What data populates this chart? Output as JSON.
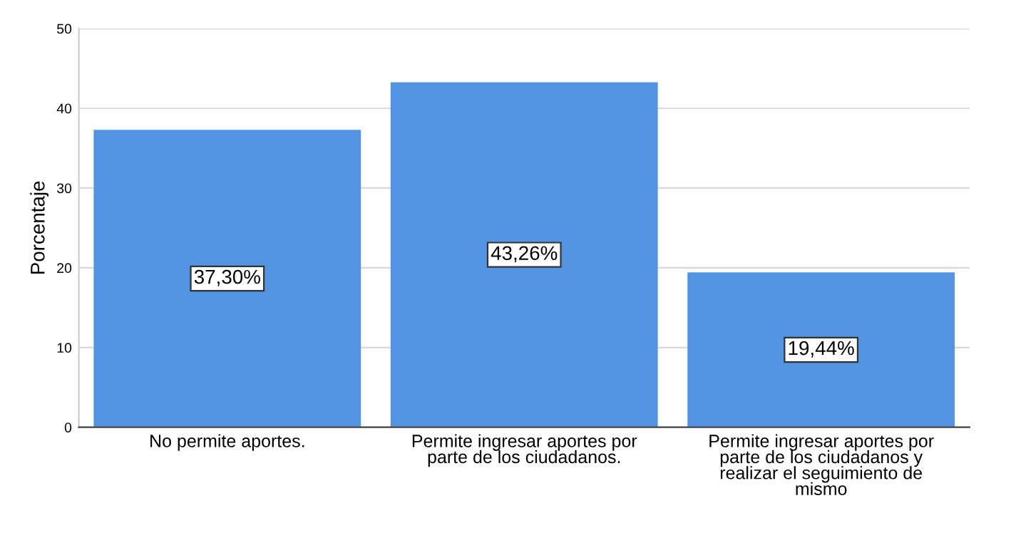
{
  "chart_data": {
    "type": "bar",
    "ylabel": "Porcentaje",
    "categories": [
      "No permite aportes.",
      "Permite ingresar aportes por\nparte de los ciudadanos.",
      "Permite ingresar aportes por\nparte de los ciudadanos y\nrealizar el seguimiento de\nmismo"
    ],
    "values": [
      37.3,
      43.26,
      19.44
    ],
    "value_labels": [
      "37,30%",
      "43,26%",
      "19,44%"
    ],
    "color": "#5294e2",
    "ylim": [
      0,
      50
    ],
    "yticks": [
      0,
      10,
      20,
      30,
      40,
      50
    ],
    "grid": "y"
  }
}
